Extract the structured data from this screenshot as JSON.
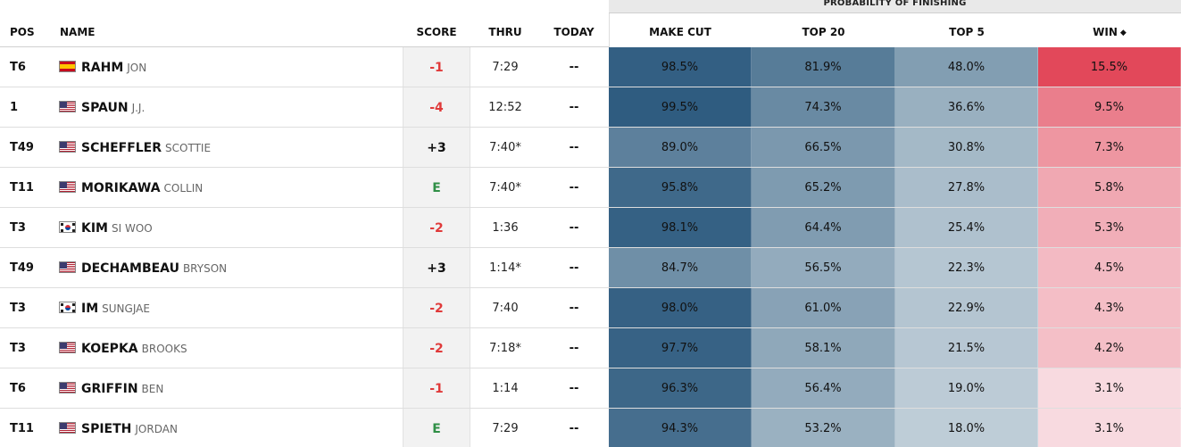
{
  "group_header": "PROBABILITY OF FINISHING",
  "columns": {
    "pos": "POS",
    "name": "NAME",
    "score": "SCORE",
    "thru": "THRU",
    "today": "TODAY",
    "make_cut": "MAKE CUT",
    "top20": "TOP 20",
    "top5": "TOP 5",
    "win": "WIN"
  },
  "sort_icon": "sort-desc-icon",
  "colors": {
    "score_negative": "#e03a3a",
    "score_even": "#2f8f46",
    "probability_blue_dark": "#2f5c80",
    "probability_red": "#e0475a"
  },
  "rows": [
    {
      "pos": "T6",
      "flag": "spain",
      "last": "RAHM",
      "first": "JON",
      "score": "-1",
      "thru": "7:29",
      "today": "--",
      "make_cut": "98.5%",
      "top20": "81.9%",
      "top5": "48.0%",
      "win": "15.5%"
    },
    {
      "pos": "1",
      "flag": "usa",
      "last": "SPAUN",
      "first": "J.J.",
      "score": "-4",
      "thru": "12:52",
      "today": "--",
      "make_cut": "99.5%",
      "top20": "74.3%",
      "top5": "36.6%",
      "win": "9.5%"
    },
    {
      "pos": "T49",
      "flag": "usa",
      "last": "SCHEFFLER",
      "first": "SCOTTIE",
      "score": "+3",
      "thru": "7:40*",
      "today": "--",
      "make_cut": "89.0%",
      "top20": "66.5%",
      "top5": "30.8%",
      "win": "7.3%"
    },
    {
      "pos": "T11",
      "flag": "usa",
      "last": "MORIKAWA",
      "first": "COLLIN",
      "score": "E",
      "thru": "7:40*",
      "today": "--",
      "make_cut": "95.8%",
      "top20": "65.2%",
      "top5": "27.8%",
      "win": "5.8%"
    },
    {
      "pos": "T3",
      "flag": "korea",
      "last": "KIM",
      "first": "SI WOO",
      "score": "-2",
      "thru": "1:36",
      "today": "--",
      "make_cut": "98.1%",
      "top20": "64.4%",
      "top5": "25.4%",
      "win": "5.3%"
    },
    {
      "pos": "T49",
      "flag": "usa",
      "last": "DECHAMBEAU",
      "first": "BRYSON",
      "score": "+3",
      "thru": "1:14*",
      "today": "--",
      "make_cut": "84.7%",
      "top20": "56.5%",
      "top5": "22.3%",
      "win": "4.5%"
    },
    {
      "pos": "T3",
      "flag": "korea",
      "last": "IM",
      "first": "SUNGJAE",
      "score": "-2",
      "thru": "7:40",
      "today": "--",
      "make_cut": "98.0%",
      "top20": "61.0%",
      "top5": "22.9%",
      "win": "4.3%"
    },
    {
      "pos": "T3",
      "flag": "usa",
      "last": "KOEPKA",
      "first": "BROOKS",
      "score": "-2",
      "thru": "7:18*",
      "today": "--",
      "make_cut": "97.7%",
      "top20": "58.1%",
      "top5": "21.5%",
      "win": "4.2%"
    },
    {
      "pos": "T6",
      "flag": "usa",
      "last": "GRIFFIN",
      "first": "BEN",
      "score": "-1",
      "thru": "1:14",
      "today": "--",
      "make_cut": "96.3%",
      "top20": "56.4%",
      "top5": "19.0%",
      "win": "3.1%"
    },
    {
      "pos": "T11",
      "flag": "usa",
      "last": "SPIETH",
      "first": "JORDAN",
      "score": "E",
      "thru": "7:29",
      "today": "--",
      "make_cut": "94.3%",
      "top20": "53.2%",
      "top5": "18.0%",
      "win": "3.1%"
    }
  ]
}
